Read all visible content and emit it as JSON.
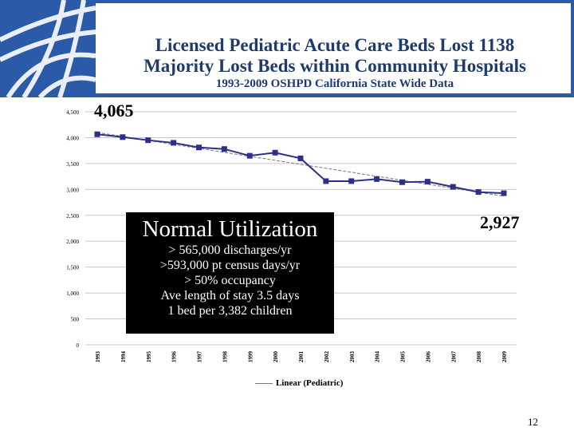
{
  "header": {
    "title_line1": "Licensed Pediatric Acute Care Beds Lost 1138",
    "title_line2": "Majority Lost Beds within Community Hospitals",
    "title_line3": "1993-2009 OSHPD California State Wide  Data"
  },
  "callouts": {
    "start_value": "4,065",
    "end_value": "2,927"
  },
  "utilization_box": {
    "title": "Normal Utilization",
    "lines": [
      "> 565,000 discharges/yr",
      ">593,000 pt census days/yr",
      "> 50% occupancy",
      "Ave length of stay 3.5 days",
      "1 bed per 3,382 children"
    ]
  },
  "page_number": "12",
  "colors": {
    "title": "#1f3a6e",
    "series": "#2e2f8a",
    "trendline": "#777777"
  },
  "chart_data": {
    "type": "line",
    "title": "",
    "xlabel": "",
    "ylabel": "",
    "ylim": [
      0,
      4500
    ],
    "yticks": [
      0,
      500,
      1000,
      1500,
      2000,
      2500,
      3000,
      3500,
      4000,
      4500
    ],
    "ytick_labels": [
      "0",
      "500",
      "1,000",
      "1,500",
      "2,000",
      "2,500",
      "3,000",
      "3,500",
      "4,000",
      "4,500"
    ],
    "categories": [
      "1993",
      "1994",
      "1995",
      "1996",
      "1997",
      "1998",
      "1999",
      "2000",
      "2001",
      "2002",
      "2003",
      "2004",
      "2005",
      "2006",
      "2007",
      "2008",
      "2009"
    ],
    "series": [
      {
        "values": [
          4065,
          4010,
          3950,
          3900,
          3810,
          3780,
          3650,
          3710,
          3600,
          3160,
          3160,
          3200,
          3140,
          3150,
          3050,
          2950,
          2927
        ]
      }
    ],
    "trendline": {
      "label": "Linear (Pediatric)",
      "start": 4100,
      "end": 2870
    },
    "grid": true,
    "legend": "bottom"
  }
}
